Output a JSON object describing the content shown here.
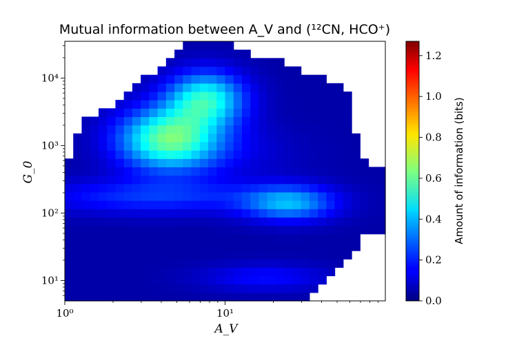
{
  "chart_data": {
    "type": "heatmap",
    "title": "Mutual information between A_V and (¹²CN, HCO⁺)",
    "xlabel": "A_V",
    "ylabel": "G_0",
    "xscale": "log",
    "yscale": "log",
    "xlim": [
      1,
      100
    ],
    "ylim": [
      5,
      35000
    ],
    "xticks": [
      {
        "value": 1,
        "label": "10⁰"
      },
      {
        "value": 10,
        "label": "10¹"
      }
    ],
    "yticks": [
      {
        "value": 10,
        "label": "10¹"
      },
      {
        "value": 100,
        "label": "10²"
      },
      {
        "value": 1000,
        "label": "10³"
      },
      {
        "value": 10000,
        "label": "10⁴"
      }
    ],
    "colormap": "jet",
    "colorbar": {
      "label": "Amount of information (bits)",
      "min": 0.0,
      "max": 1.27,
      "ticks": [
        "0.0",
        "0.2",
        "0.4",
        "0.6",
        "0.8",
        "1.0",
        "1.2"
      ]
    },
    "grid": false,
    "peaks": [
      {
        "log_av": 0.65,
        "log_g0": 3.1,
        "value": 0.6
      },
      {
        "log_av": 0.88,
        "log_g0": 3.7,
        "value": 0.5
      },
      {
        "log_av": 1.4,
        "log_g0": 2.15,
        "value": 0.37
      }
    ]
  }
}
